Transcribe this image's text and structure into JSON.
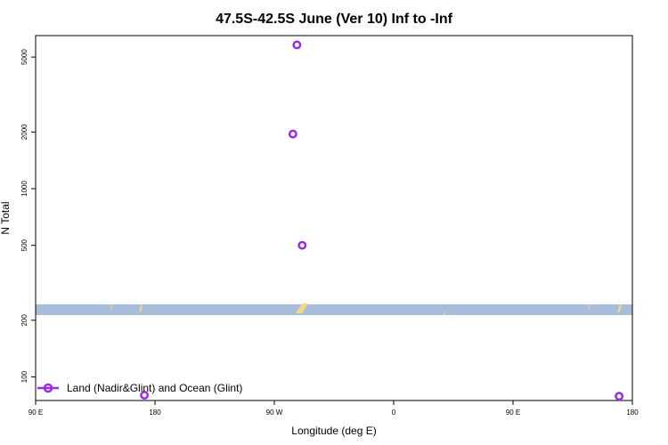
{
  "chart_data": {
    "type": "scatter",
    "title": "47.5S-42.5S June (Ver 10)   Inf to -Inf",
    "xlabel": "Longitude (deg E)",
    "ylabel": "N Total",
    "x_ticks": [
      {
        "value": 90,
        "label": "90 E"
      },
      {
        "value": 180,
        "label": "180"
      },
      {
        "value": 270,
        "label": "90 W"
      },
      {
        "value": 360,
        "label": "0"
      },
      {
        "value": 450,
        "label": "90 E"
      },
      {
        "value": 540,
        "label": "180"
      }
    ],
    "y_ticks": [
      {
        "value": 100,
        "label": "100"
      },
      {
        "value": 200,
        "label": "200"
      },
      {
        "value": 500,
        "label": "500"
      },
      {
        "value": 1000,
        "label": "1000"
      },
      {
        "value": 2000,
        "label": "2000"
      },
      {
        "value": 5000,
        "label": "5000"
      }
    ],
    "xlim": [
      90,
      540
    ],
    "ylim": [
      75,
      6500
    ],
    "y_scale": "log",
    "grid": false,
    "legend_position": "bottom-left",
    "land_color": "#f5d98a",
    "ocean_color": "#a8bcdc",
    "series": [
      {
        "name": "Land (Nadir&Glint) and Ocean (Glint)",
        "color": "#9a2be2",
        "marker": "open-circle",
        "x": [
          287,
          284,
          291,
          172,
          530
        ],
        "y": [
          5800,
          1950,
          500,
          80,
          79
        ]
      }
    ]
  }
}
